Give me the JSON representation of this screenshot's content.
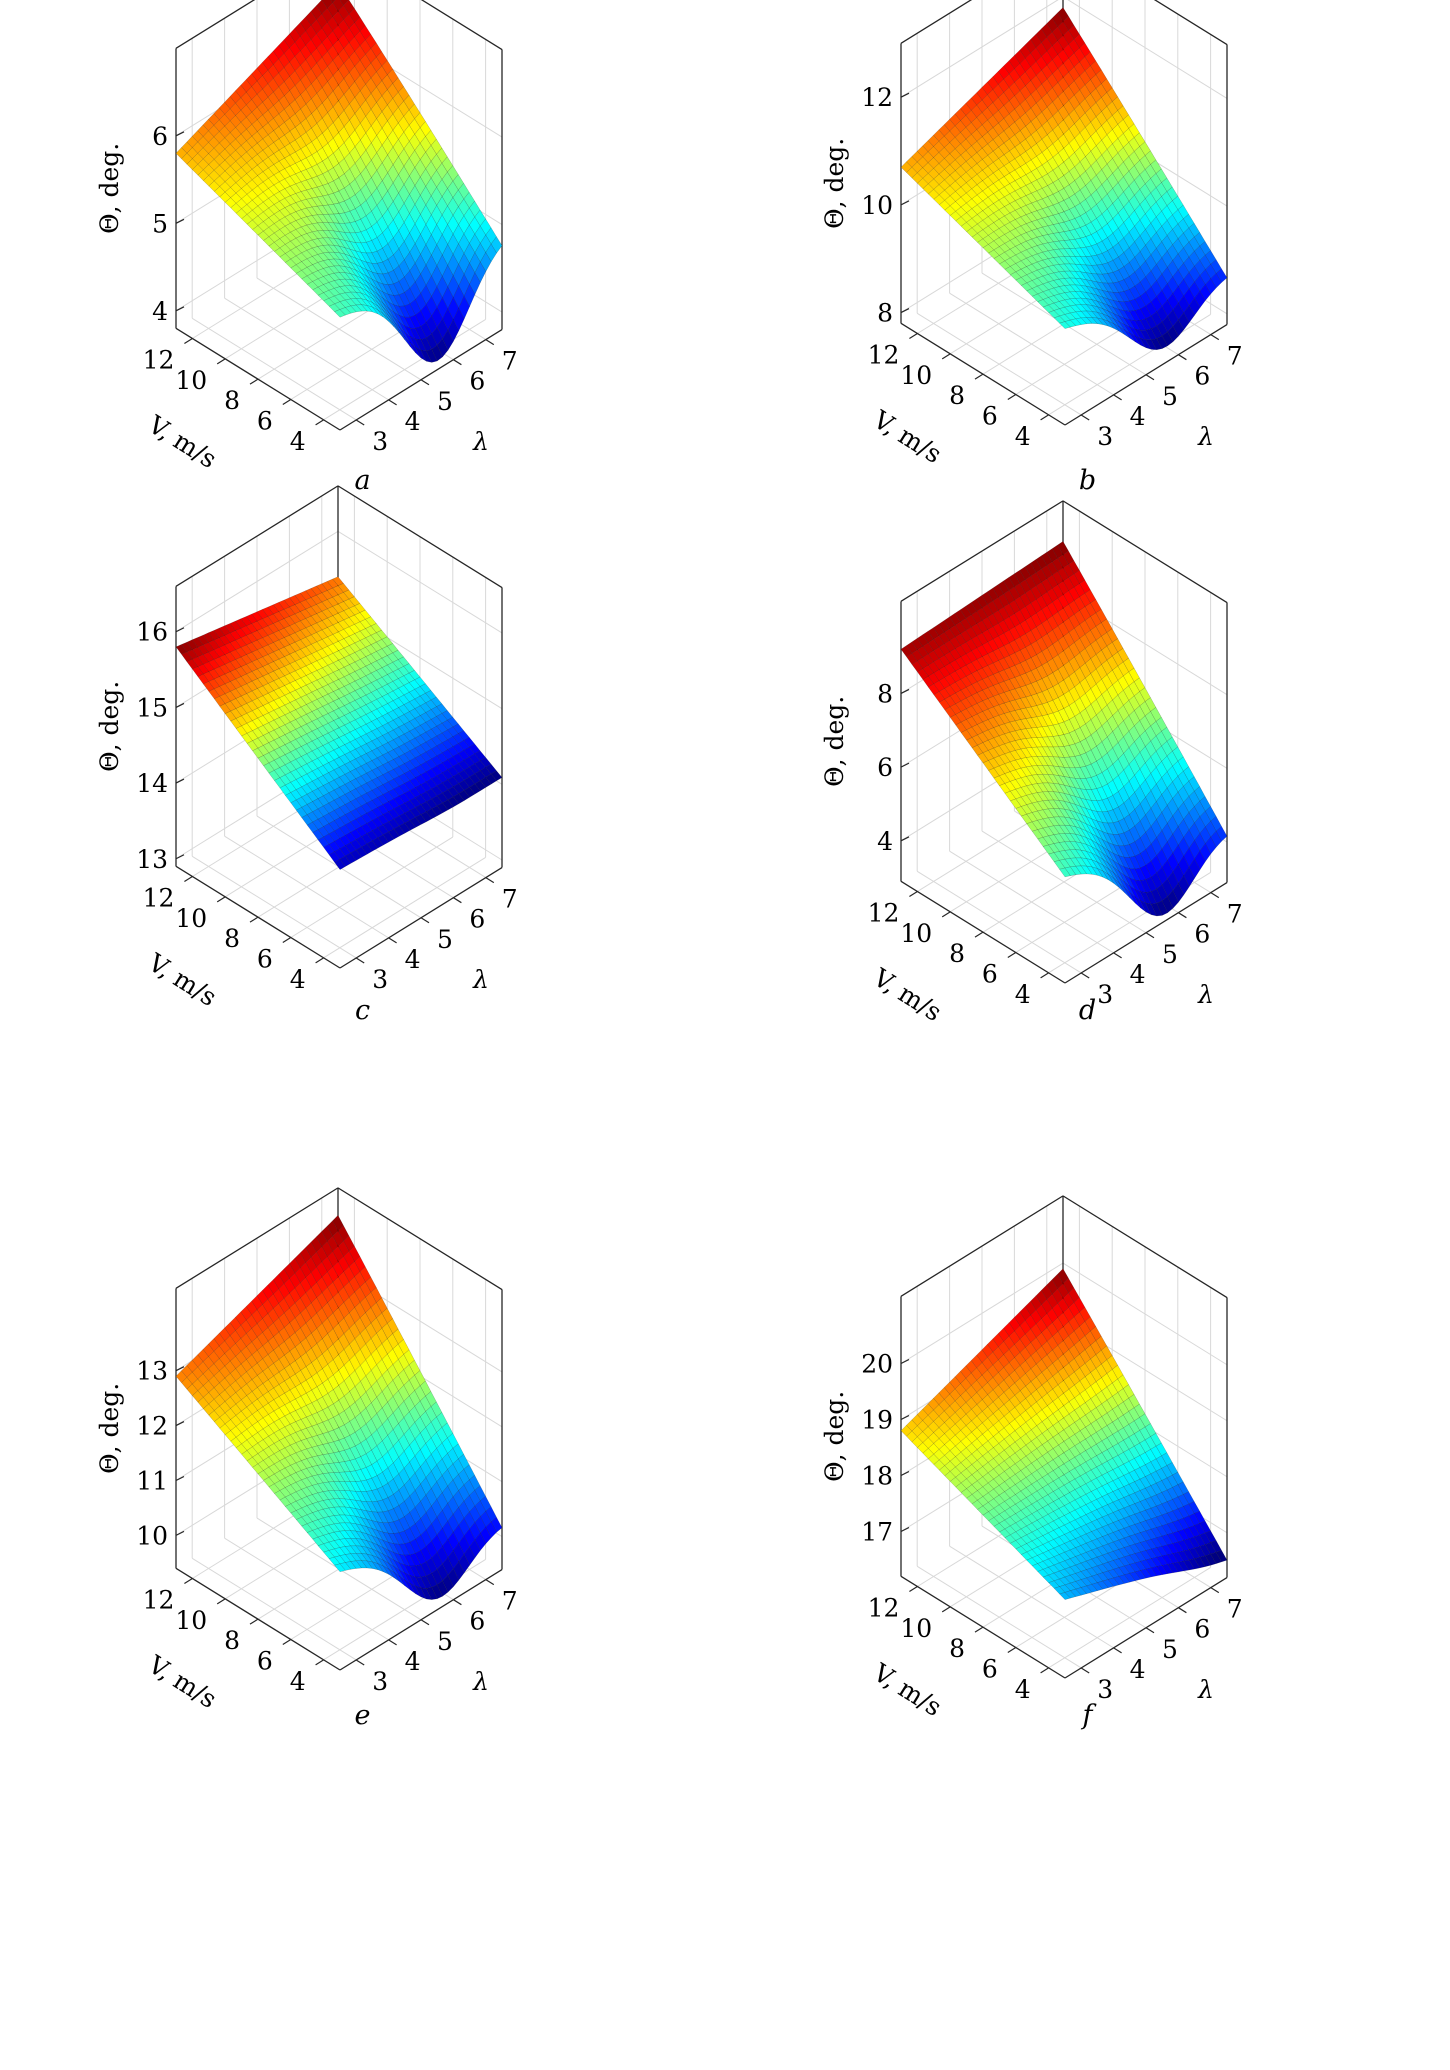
{
  "figure": {
    "panels": [
      {
        "id": "a",
        "caption": "a"
      },
      {
        "id": "b",
        "caption": "b"
      },
      {
        "id": "c",
        "caption": "c"
      },
      {
        "id": "d",
        "caption": "d"
      },
      {
        "id": "e",
        "caption": "e"
      },
      {
        "id": "f",
        "caption": "f"
      }
    ]
  },
  "chart_data": [
    {
      "panel": "a",
      "type": "surface",
      "xlabel": "V, m/s",
      "ylabel": "λ",
      "zlabel": "Θ, deg.",
      "x_ticks": [
        4,
        6,
        8,
        10,
        12
      ],
      "y_ticks": [
        3,
        4,
        5,
        6,
        7
      ],
      "z_ticks": [
        4,
        5,
        6
      ],
      "xlim": [
        3,
        13
      ],
      "ylim": [
        2.5,
        7.5
      ],
      "zlim": [
        3.8,
        7.0
      ],
      "corners": {
        "V12_l3": 5.8,
        "V4_l3": 5.1,
        "V12_l7": 6.6,
        "V4_l7": 4.9
      },
      "min_value": 3.9,
      "min_location": {
        "V": 4,
        "l": 5.5
      },
      "grid": true,
      "colormap": "jet"
    },
    {
      "panel": "b",
      "type": "surface",
      "xlabel": "V, m/s",
      "ylabel": "λ",
      "zlabel": "Θ, deg.",
      "x_ticks": [
        4,
        6,
        8,
        10,
        12
      ],
      "y_ticks": [
        3,
        4,
        5,
        6,
        7
      ],
      "z_ticks": [
        8,
        10,
        12
      ],
      "xlim": [
        3,
        13
      ],
      "ylim": [
        2.5,
        7.5
      ],
      "zlim": [
        7.8,
        13.0
      ],
      "corners": {
        "V12_l3": 10.7,
        "V4_l3": 9.6,
        "V12_l7": 11.8,
        "V4_l7": 8.8
      },
      "min_value": 8.1,
      "min_location": {
        "V": 4,
        "l": 5.5
      },
      "grid": true,
      "colormap": "jet"
    },
    {
      "panel": "c",
      "type": "surface",
      "xlabel": "V, m/s",
      "ylabel": "λ",
      "zlabel": "Θ, deg.",
      "x_ticks": [
        4,
        6,
        8,
        10,
        12
      ],
      "y_ticks": [
        3,
        4,
        5,
        6,
        7
      ],
      "z_ticks": [
        13,
        14,
        15,
        16
      ],
      "xlim": [
        3,
        13
      ],
      "ylim": [
        2.5,
        7.5
      ],
      "zlim": [
        12.9,
        16.6
      ],
      "corners": {
        "V12_l3": 15.8,
        "V4_l3": 14.2,
        "V12_l7": 15.4,
        "V4_l7": 14.1
      },
      "min_value": 14.1,
      "min_location": {
        "V": 4,
        "l": 6
      },
      "grid": true,
      "colormap": "jet"
    },
    {
      "panel": "d",
      "type": "surface",
      "xlabel": "V, m/s",
      "ylabel": "λ",
      "zlabel": "Θ, deg.",
      "x_ticks": [
        4,
        6,
        8,
        10,
        12
      ],
      "y_ticks": [
        3,
        4,
        5,
        6,
        7
      ],
      "z_ticks": [
        4,
        6,
        8
      ],
      "xlim": [
        3,
        13
      ],
      "ylim": [
        2.5,
        7.5
      ],
      "zlim": [
        2.9,
        10.5
      ],
      "corners": {
        "V12_l3": 9.2,
        "V4_l3": 5.8,
        "V12_l7": 9.4,
        "V4_l7": 4.4
      },
      "min_value": 3.1,
      "min_location": {
        "V": 4,
        "l": 5.5
      },
      "grid": true,
      "colormap": "jet"
    },
    {
      "panel": "e",
      "type": "surface",
      "xlabel": "V, m/s",
      "ylabel": "λ",
      "zlabel": "Θ, deg.",
      "x_ticks": [
        4,
        6,
        8,
        10,
        12
      ],
      "y_ticks": [
        3,
        4,
        5,
        6,
        7
      ],
      "z_ticks": [
        10,
        11,
        12,
        13
      ],
      "xlim": [
        3,
        13
      ],
      "ylim": [
        2.5,
        7.5
      ],
      "zlim": [
        9.4,
        14.5
      ],
      "corners": {
        "V12_l3": 12.9,
        "V4_l3": 11.2,
        "V12_l7": 14.0,
        "V4_l7": 10.3
      },
      "min_value": 9.6,
      "min_location": {
        "V": 4,
        "l": 5.5
      },
      "grid": true,
      "colormap": "jet"
    },
    {
      "panel": "f",
      "type": "surface",
      "xlabel": "V, m/s",
      "ylabel": "λ",
      "zlabel": "Θ, deg.",
      "x_ticks": [
        4,
        6,
        8,
        10,
        12
      ],
      "y_ticks": [
        3,
        4,
        5,
        6,
        7
      ],
      "z_ticks": [
        17,
        18,
        19,
        20
      ],
      "xlim": [
        3,
        13
      ],
      "ylim": [
        2.5,
        7.5
      ],
      "zlim": [
        16.2,
        21.2
      ],
      "corners": {
        "V12_l3": 18.8,
        "V4_l3": 17.6,
        "V12_l7": 19.9,
        "V4_l7": 16.6
      },
      "min_value": 16.6,
      "min_location": {
        "V": 4,
        "l": 7
      },
      "grid": true,
      "colormap": "jet"
    }
  ]
}
